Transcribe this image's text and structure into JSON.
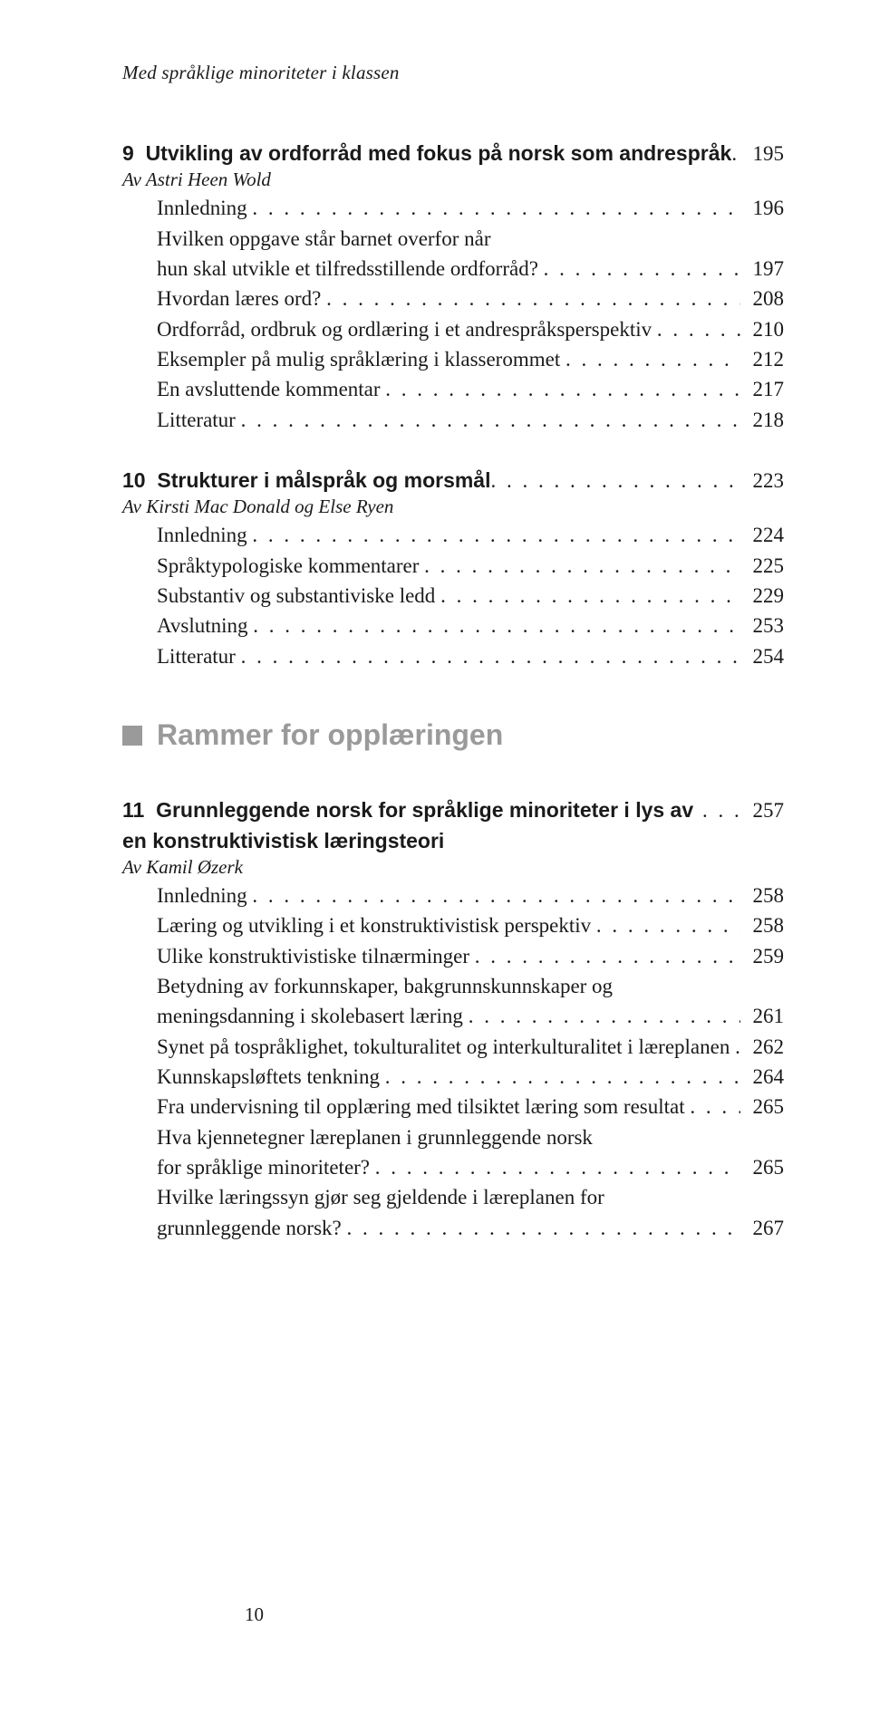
{
  "running_head": "Med språklige minoriteter i klassen",
  "page_number": "10",
  "section_heading": "Rammer for opplæringen",
  "ch9": {
    "title": "9  Utvikling av ordforråd med fokus på norsk som andrespråk",
    "title_page": "195",
    "author": "Av Astri Heen Wold",
    "items": [
      {
        "label": "Innledning",
        "page": "196"
      },
      {
        "label": "Hvilken oppgave står barnet overfor når\nhun skal utvikle et tilfredsstillende ordforråd?",
        "page": "197"
      },
      {
        "label": "Hvordan læres ord?",
        "page": "208"
      },
      {
        "label": "Ordforråd, ordbruk og ordlæring i et andrespråksperspektiv",
        "page": "210"
      },
      {
        "label": "Eksempler på mulig språklæring i klasserommet",
        "page": "212"
      },
      {
        "label": "En avsluttende kommentar",
        "page": "217"
      },
      {
        "label": "Litteratur",
        "page": "218"
      }
    ]
  },
  "ch10": {
    "title": "10  Strukturer i målspråk og morsmål",
    "title_page": "223",
    "author": "Av Kirsti Mac Donald og Else Ryen",
    "items": [
      {
        "label": "Innledning",
        "page": "224"
      },
      {
        "label": "Språktypologiske kommentarer",
        "page": "225"
      },
      {
        "label": "Substantiv og substantiviske ledd",
        "page": "229"
      },
      {
        "label": "Avslutning",
        "page": "253"
      },
      {
        "label": "Litteratur",
        "page": "254"
      }
    ]
  },
  "ch11": {
    "title": "11  Grunnleggende norsk for språklige minoriteter i lys av en konstruktivistisk læringsteori",
    "title_page": "257",
    "author": "Av Kamil Øzerk",
    "items": [
      {
        "label": "Innledning",
        "page": "258"
      },
      {
        "label": "Læring og utvikling i et konstruktivistisk perspektiv",
        "page": "258"
      },
      {
        "label": "Ulike konstruktivistiske tilnærminger",
        "page": "259"
      },
      {
        "label": "Betydning av forkunnskaper, bakgrunnskunnskaper og\nmeningsdanning i skolebasert læring",
        "page": "261"
      },
      {
        "label": "Synet på tospråklighet, tokulturalitet og interkulturalitet i læreplanen",
        "page": "262"
      },
      {
        "label": "Kunnskapsløftets tenkning",
        "page": "264"
      },
      {
        "label": "Fra undervisning til opplæring med tilsiktet læring som resultat",
        "page": "265"
      },
      {
        "label": "Hva kjennetegner læreplanen i grunnleggende norsk\nfor språklige minoriteter?",
        "page": "265"
      },
      {
        "label": "Hvilke læringssyn gjør seg gjeldende i læreplanen for\ngrunnleggende norsk?",
        "page": "267"
      }
    ]
  }
}
